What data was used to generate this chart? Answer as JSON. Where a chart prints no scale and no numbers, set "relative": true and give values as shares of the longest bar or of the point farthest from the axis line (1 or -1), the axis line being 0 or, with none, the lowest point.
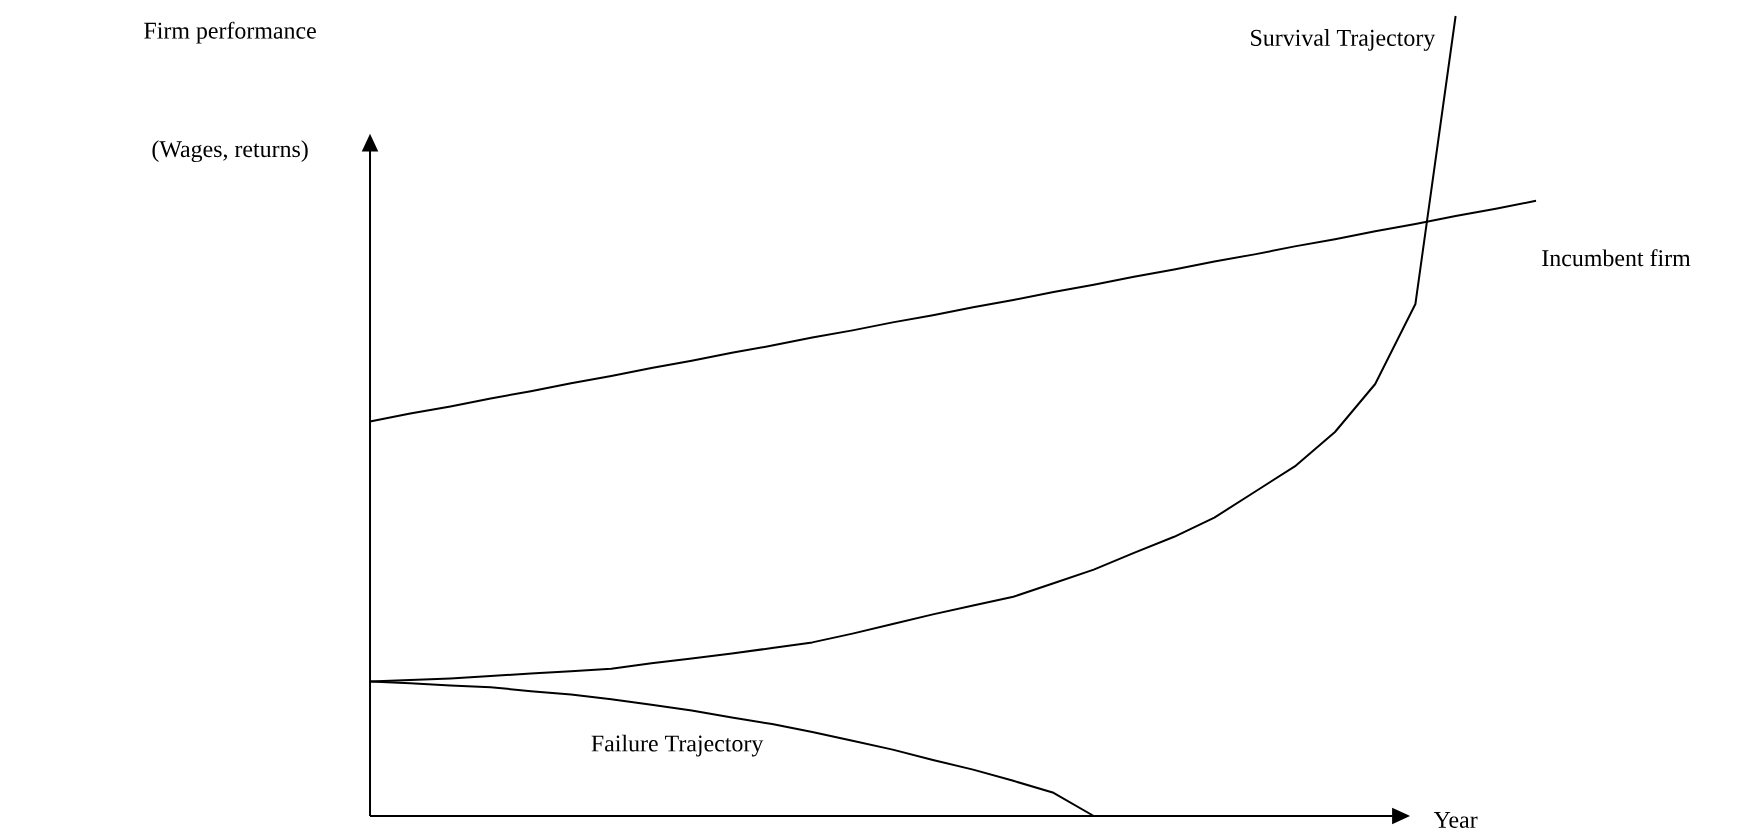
{
  "chart_data": {
    "type": "line",
    "relative": true,
    "ylabel": "Firm performance",
    "xlabel": "Year",
    "annotations": [
      "(Wages, returns)"
    ],
    "marker": "none",
    "line_style": "solid",
    "categories": [
      null,
      null,
      null,
      null,
      null,
      null,
      null,
      null,
      null,
      null,
      null,
      null,
      null,
      null,
      null,
      null,
      null,
      null,
      null,
      null,
      null,
      null,
      null,
      null,
      null,
      null,
      null,
      null,
      null,
      null
    ],
    "series": [
      {
        "name": "Survival Trajectory",
        "color": "#000000",
        "values": [
          0.168,
          0.17,
          0.172,
          0.175,
          0.178,
          0.181,
          0.184,
          0.191,
          0.197,
          0.203,
          0.21,
          0.217,
          0.228,
          0.24,
          0.252,
          0.263,
          0.274,
          0.291,
          0.308,
          0.329,
          0.349,
          0.373,
          0.405,
          0.437,
          0.48,
          0.54,
          0.64,
          1.0,
          null,
          null
        ]
      },
      {
        "name": "Incumbent firm",
        "color": "#000000",
        "values": [
          0.493,
          0.503,
          0.512,
          0.522,
          0.531,
          0.541,
          0.55,
          0.56,
          0.569,
          0.579,
          0.588,
          0.598,
          0.607,
          0.617,
          0.626,
          0.636,
          0.645,
          0.655,
          0.664,
          0.674,
          0.683,
          0.693,
          0.702,
          0.712,
          0.721,
          0.731,
          0.74,
          0.75,
          0.759,
          0.769
        ]
      },
      {
        "name": "Failure Trajectory",
        "color": "#000000",
        "values": [
          0.168,
          0.166,
          0.163,
          0.161,
          0.156,
          0.152,
          0.146,
          0.139,
          0.132,
          0.123,
          0.115,
          0.105,
          0.094,
          0.083,
          0.07,
          0.058,
          0.044,
          0.029,
          0,
          null,
          null,
          null,
          null,
          null,
          null,
          null,
          null,
          null,
          null,
          null
        ]
      }
    ]
  }
}
